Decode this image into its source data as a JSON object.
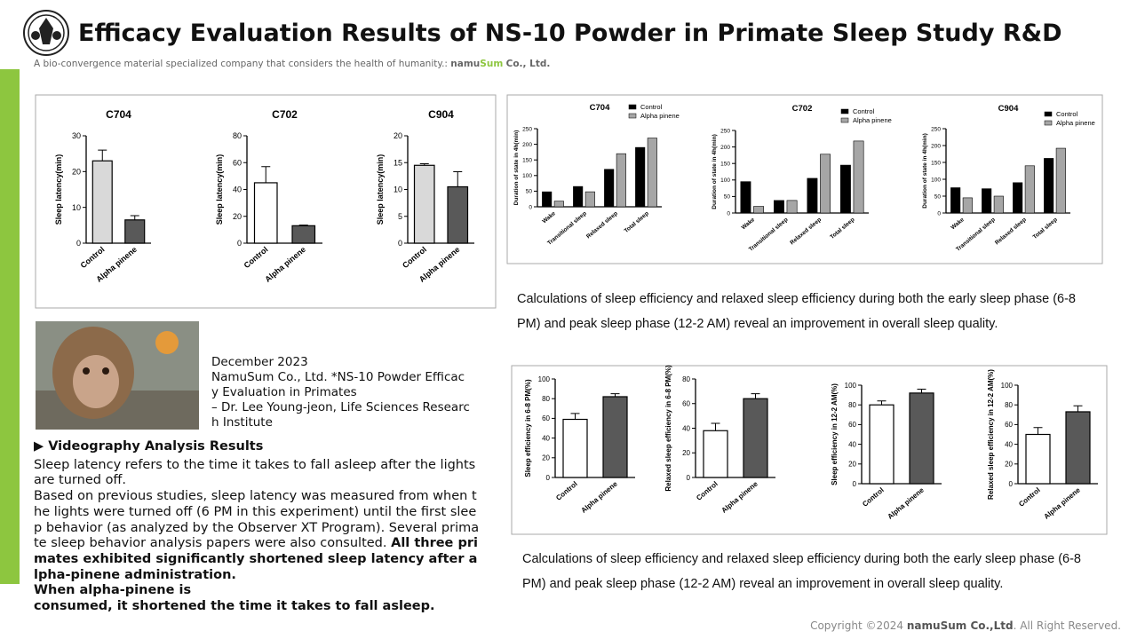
{
  "header": {
    "title": "Efficacy Evaluation Results of NS-10 Powder in Primate Sleep Study R&D",
    "subtitle": "A bio-convergence material specialized company that considers the health of humanity.:",
    "brand": [
      "namu",
      "Sum",
      "Co., Ltd."
    ]
  },
  "caption": [
    "December 2023",
    "NamuSum Co., Ltd. *NS-10 Powder Efficacy Evaluation in Primates",
    "– Dr. Lee Young-jeon, Life Sciences Research Institute"
  ],
  "analysis": {
    "heading": "▶ Videography Analysis Results",
    "paragraphs": [
      "Sleep latency refers to the time it takes to fall asleep after the lights are turned off.",
      "Based on previous studies, sleep latency was measured from when the lights were turned off (6 PM in this experiment) until the first sleep behavior (as analyzed by the Observer XT Program). Several primate sleep behavior analysis papers were also consulted."
    ],
    "bold": [
      "All three primates exhibited significantly shortened sleep latency after alpha-pinene administration.",
      "When alpha-pinene is",
      "consumed, it shortened  the time it takes to fall asleep."
    ]
  },
  "notes": [
    "Calculations of sleep efficiency and relaxed sleep efficiency during both the early sleep phase (6-8 PM) and peak sleep phase (12-2 AM) reveal an improvement in overall sleep quality.",
    "Calculations of sleep efficiency and relaxed sleep efficiency during both the early sleep phase (6-8 PM) and peak sleep phase (12-2 AM) reveal an improvement in overall sleep quality."
  ],
  "footer": {
    "prefix": "Copyright ©2024",
    "brand": "namuSum Co.,Ltd",
    "suffix": ". All Right Reserved."
  },
  "chart_data": [
    {
      "type": "bar",
      "title": "C704",
      "y_label": "Sleep latency(min)",
      "categories": [
        "Control",
        "Alpha pinene"
      ],
      "values": [
        23,
        6.5
      ],
      "errors": [
        3,
        1.2
      ],
      "colors": [
        "#d9d9d9",
        "#595959"
      ],
      "ylim": [
        0,
        30
      ],
      "yticks": [
        0,
        10,
        20,
        30
      ]
    },
    {
      "type": "bar",
      "title": "C702",
      "y_label": "Sleep latency(min)",
      "categories": [
        "Control",
        "Alpha pinene"
      ],
      "values": [
        45,
        13
      ],
      "errors": [
        12,
        0.5
      ],
      "colors": [
        "#ffffff",
        "#595959"
      ],
      "ylim": [
        0,
        80
      ],
      "yticks": [
        0,
        20,
        40,
        60,
        80
      ]
    },
    {
      "type": "bar",
      "title": "C904",
      "y_label": "Sleep latency(min)",
      "categories": [
        "Control",
        "Alpha pinene"
      ],
      "values": [
        14.5,
        10.5
      ],
      "errors": [
        0.3,
        2.8
      ],
      "colors": [
        "#d9d9d9",
        "#595959"
      ],
      "ylim": [
        0,
        20
      ],
      "yticks": [
        0,
        5,
        10,
        15,
        20
      ]
    },
    {
      "type": "grouped_bar",
      "title": "C704",
      "y_label": "Duration of state in 4h(min)",
      "categories": [
        "Wake",
        "Transitional sleep",
        "Relaxed sleep",
        "Total sleep"
      ],
      "series": [
        {
          "name": "Control",
          "color": "#000000",
          "values": [
            48,
            65,
            120,
            190
          ]
        },
        {
          "name": "Alpha pinene",
          "color": "#a6a6a6",
          "values": [
            18,
            48,
            170,
            220
          ]
        }
      ],
      "ylim": [
        0,
        250
      ],
      "yticks": [
        0,
        50,
        100,
        150,
        200,
        250
      ]
    },
    {
      "type": "grouped_bar",
      "title": "C702",
      "y_label": "Duration of state in 4h(min)",
      "categories": [
        "Wake",
        "Transitional sleep",
        "Relaxed sleep",
        "Total sleep"
      ],
      "series": [
        {
          "name": "Control",
          "color": "#000000",
          "values": [
            95,
            38,
            105,
            145
          ]
        },
        {
          "name": "Alpha pinene",
          "color": "#a6a6a6",
          "values": [
            20,
            38,
            178,
            218
          ]
        }
      ],
      "ylim": [
        0,
        250
      ],
      "yticks": [
        0,
        50,
        100,
        150,
        200,
        250
      ]
    },
    {
      "type": "grouped_bar",
      "title": "C904",
      "y_label": "Duration of state in 4h(min)",
      "categories": [
        "Wake",
        "Transitional sleep",
        "Relaxed sleep",
        "Total sleep"
      ],
      "series": [
        {
          "name": "Control",
          "color": "#000000",
          "values": [
            75,
            72,
            90,
            162
          ]
        },
        {
          "name": "Alpha pinene",
          "color": "#a6a6a6",
          "values": [
            45,
            50,
            140,
            192
          ]
        }
      ],
      "ylim": [
        0,
        250
      ],
      "yticks": [
        0,
        50,
        100,
        150,
        200,
        250
      ]
    },
    {
      "type": "bar",
      "y_label": "Sleep efficiency in 6-8 PM(%)",
      "categories": [
        "Control",
        "Alpha pinene"
      ],
      "values": [
        59,
        82
      ],
      "errors": [
        6,
        3
      ],
      "colors": [
        "#ffffff",
        "#595959"
      ],
      "ylim": [
        0,
        100
      ],
      "yticks": [
        0,
        20,
        40,
        60,
        80,
        100
      ]
    },
    {
      "type": "bar",
      "y_label": "Relaxed sleep efficiency in 6-8 PM(%)",
      "categories": [
        "Control",
        "Alpha pinene"
      ],
      "values": [
        38,
        64
      ],
      "errors": [
        6,
        4
      ],
      "colors": [
        "#ffffff",
        "#595959"
      ],
      "ylim": [
        0,
        80
      ],
      "yticks": [
        0,
        20,
        40,
        60,
        80
      ]
    },
    {
      "type": "bar",
      "y_label": "Sleep efficiency in  12-2 AM(%)",
      "categories": [
        "Control",
        "Alpha pinene"
      ],
      "values": [
        80,
        92
      ],
      "errors": [
        4,
        4
      ],
      "colors": [
        "#ffffff",
        "#595959"
      ],
      "ylim": [
        0,
        100
      ],
      "yticks": [
        0,
        20,
        40,
        60,
        80,
        100
      ]
    },
    {
      "type": "bar",
      "y_label": "Relaxed sleep efficiency in 12-2 AM(%)",
      "categories": [
        "Control",
        "Alpha pinene"
      ],
      "values": [
        50,
        73
      ],
      "errors": [
        7,
        6
      ],
      "colors": [
        "#ffffff",
        "#595959"
      ],
      "ylim": [
        0,
        100
      ],
      "yticks": [
        0,
        20,
        40,
        60,
        80,
        100
      ]
    }
  ]
}
